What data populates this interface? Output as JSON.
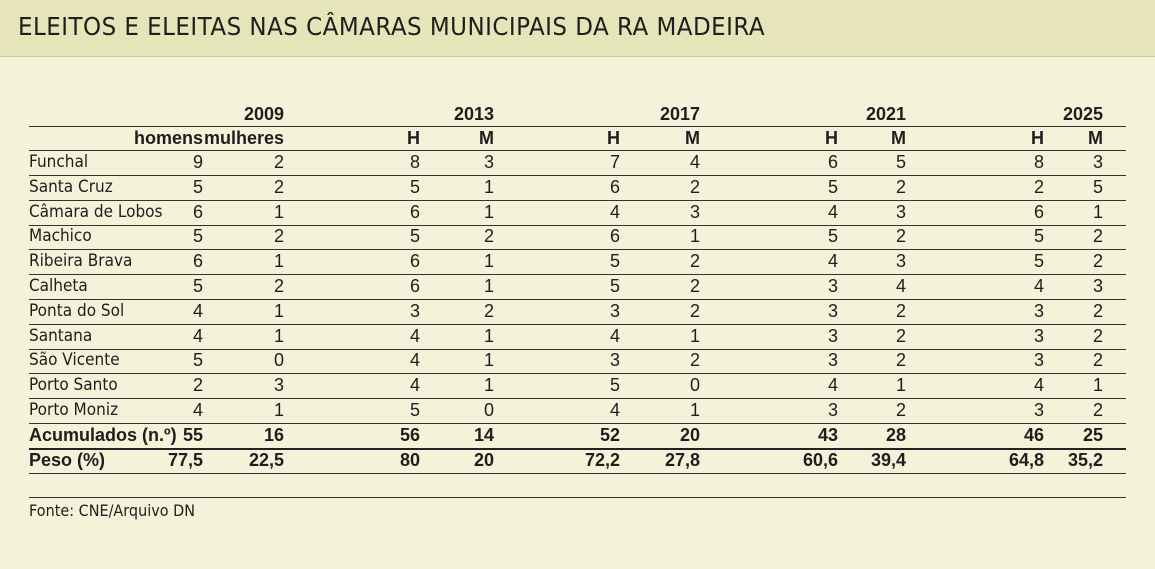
{
  "title": "ELEITOS E ELEITAS NAS CÂMARAS MUNICIPAIS DA RA MADEIRA",
  "source": "Fonte: CNE/Arquivo DN",
  "chart_data": {
    "type": "table",
    "years": [
      "2009",
      "2013",
      "2017",
      "2021",
      "2025"
    ],
    "subheaders": [
      [
        "homens",
        "mulheres"
      ],
      [
        "H",
        "M"
      ],
      [
        "H",
        "M"
      ],
      [
        "H",
        "M"
      ],
      [
        "H",
        "M"
      ]
    ],
    "rows": [
      {
        "label": "Funchal",
        "values": [
          9,
          2,
          8,
          3,
          7,
          4,
          6,
          5,
          8,
          3
        ]
      },
      {
        "label": "Santa Cruz",
        "values": [
          5,
          2,
          5,
          1,
          6,
          2,
          5,
          2,
          2,
          5
        ]
      },
      {
        "label": "Câmara de Lobos",
        "values": [
          6,
          1,
          6,
          1,
          4,
          3,
          4,
          3,
          6,
          1
        ]
      },
      {
        "label": "Machico",
        "values": [
          5,
          2,
          5,
          2,
          6,
          1,
          5,
          2,
          5,
          2
        ]
      },
      {
        "label": "Ribeira Brava",
        "values": [
          6,
          1,
          6,
          1,
          5,
          2,
          4,
          3,
          5,
          2
        ]
      },
      {
        "label": "Calheta",
        "values": [
          5,
          2,
          6,
          1,
          5,
          2,
          3,
          4,
          4,
          3
        ]
      },
      {
        "label": "Ponta do Sol",
        "values": [
          4,
          1,
          3,
          2,
          3,
          2,
          3,
          2,
          3,
          2
        ]
      },
      {
        "label": "Santana",
        "values": [
          4,
          1,
          4,
          1,
          4,
          1,
          3,
          2,
          3,
          2
        ]
      },
      {
        "label": "São Vicente",
        "values": [
          5,
          0,
          4,
          1,
          3,
          2,
          3,
          2,
          3,
          2
        ]
      },
      {
        "label": "Porto Santo",
        "values": [
          2,
          3,
          4,
          1,
          5,
          0,
          4,
          1,
          4,
          1
        ]
      },
      {
        "label": "Porto Moniz",
        "values": [
          4,
          1,
          5,
          0,
          4,
          1,
          3,
          2,
          3,
          2
        ]
      }
    ],
    "totals": [
      {
        "label": "Acumulados (n.º)",
        "values": [
          "55",
          "16",
          "56",
          "14",
          "52",
          "20",
          "43",
          "28",
          "46",
          "25"
        ]
      },
      {
        "label": "Peso (%)",
        "values": [
          "77,5",
          "22,5",
          "80",
          "20",
          "72,2",
          "27,8",
          "60,6",
          "39,4",
          "64,8",
          "35,2"
        ]
      }
    ]
  }
}
